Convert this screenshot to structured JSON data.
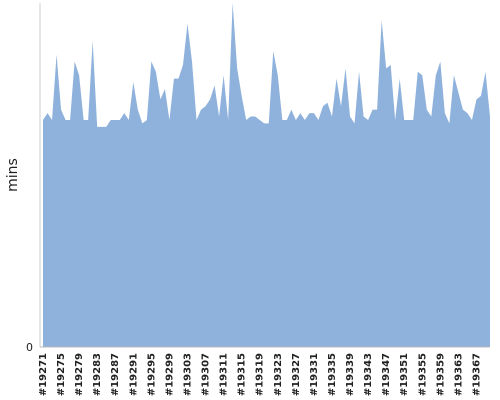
{
  "chart_data": {
    "type": "area",
    "y_label": "mins",
    "categories": [
      "#19271",
      null,
      null,
      null,
      "#19275",
      null,
      null,
      null,
      "#19279",
      null,
      null,
      null,
      "#19283",
      null,
      null,
      null,
      "#19287",
      null,
      null,
      null,
      "#19291",
      null,
      null,
      null,
      "#19295",
      null,
      null,
      null,
      "#19299",
      null,
      null,
      null,
      "#19303",
      null,
      null,
      null,
      "#19307",
      null,
      null,
      null,
      "#19311",
      null,
      null,
      null,
      "#19315",
      null,
      null,
      null,
      "#19319",
      null,
      null,
      null,
      "#19323",
      null,
      null,
      null,
      "#19327",
      null,
      null,
      null,
      "#19331",
      null,
      null,
      null,
      "#19335",
      null,
      null,
      null,
      "#19339",
      null,
      null,
      null,
      "#19343",
      null,
      null,
      null,
      "#19347",
      null,
      null,
      null,
      "#19351",
      null,
      null,
      null,
      "#19355",
      null,
      null,
      null,
      "#19359",
      null,
      null,
      null,
      "#19363",
      null,
      null,
      null,
      "#19367",
      null,
      null,
      null
    ],
    "values": [
      66,
      68,
      66,
      85,
      69,
      66,
      66,
      83,
      79,
      66,
      66,
      89,
      64,
      64,
      64,
      66,
      66,
      66,
      68,
      66,
      77,
      69,
      65,
      66,
      83,
      80,
      72,
      75,
      66,
      78,
      78,
      82,
      94,
      83,
      66,
      69,
      70,
      72,
      76,
      67,
      79,
      66,
      100,
      81,
      73,
      66,
      67,
      67,
      66,
      65,
      65,
      86,
      79,
      66,
      66,
      69,
      66,
      68,
      66,
      68,
      68,
      66,
      70,
      71,
      67,
      78,
      70,
      81,
      67,
      65,
      80,
      67,
      66,
      69,
      69,
      95,
      81,
      82,
      66,
      78,
      66,
      66,
      66,
      80,
      79,
      69,
      67,
      79,
      83,
      68,
      65,
      79,
      74,
      69,
      68,
      66,
      72,
      73,
      80,
      67
    ],
    "color": "#8fb2dc",
    "ylim": [
      0,
      100
    ],
    "yticks": [
      0
    ]
  }
}
